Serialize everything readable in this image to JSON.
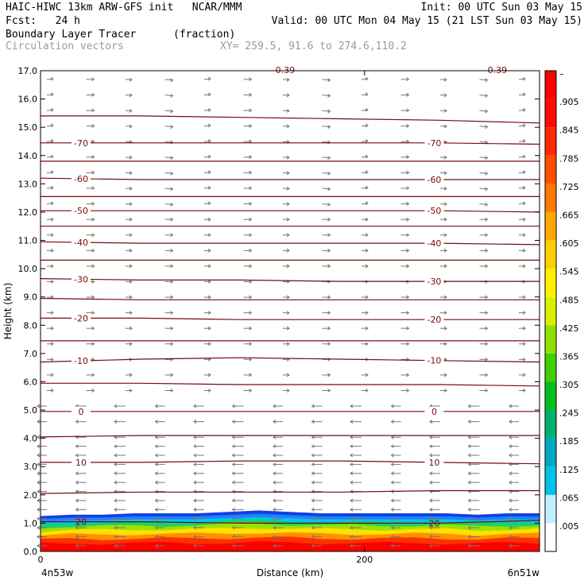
{
  "header": {
    "line1_left": "HAIC-HIWC 13km ARW-GFS init   NCAR/MMM",
    "line1_right": "Init: 00 UTC Sun 03 May 15",
    "line2_left": "Fcst:   24 h",
    "line2_right": "Valid: 00 UTC Mon 04 May 15 (21 LST Sun 03 May 15)",
    "field": "Boundary Layer Tracer",
    "field_units": "(fraction)",
    "vectors": "Circulation vectors",
    "xy": "XY= 259.5, 91.6 to 274.6,110.2"
  },
  "chart_data": {
    "type": "heatmap",
    "xlabel": "Distance (km)",
    "ylabel": "Height (km)",
    "xlim": [
      0,
      308
    ],
    "ylim": [
      0,
      17
    ],
    "x_ticks": [
      0,
      200
    ],
    "y_ticks": [
      "0.0",
      "1.0",
      "2.0",
      "3.0",
      "4.0",
      "5.0",
      "6.0",
      "7.0",
      "8.0",
      "9.0",
      "10.0",
      "11.0",
      "12.0",
      "13.0",
      "14.0",
      "15.0",
      "16.0",
      "17.0"
    ],
    "x_end_labels": {
      "left": "4n53w",
      "right": "6n51w"
    },
    "colorbar": {
      "labels": [
        "–",
        ".905",
        ".845",
        ".785",
        ".725",
        ".665",
        ".605",
        ".545",
        ".485",
        ".425",
        ".365",
        ".305",
        ".245",
        ".185",
        ".125",
        ".065",
        ".005"
      ],
      "colors": [
        "#ffffff",
        "#c0f0ff",
        "#00c0e8",
        "#00a8c0",
        "#00b070",
        "#00c020",
        "#40d000",
        "#90e000",
        "#d8f000",
        "#fff000",
        "#ffd000",
        "#ffa800",
        "#ff7800",
        "#ff5000",
        "#ff2a00",
        "#ff0c00",
        "#ff0000"
      ]
    },
    "temperature_contours_C": [
      {
        "label": "20",
        "y": [
          1.05,
          1.05,
          1.0,
          1.0,
          1.0,
          1.1
        ]
      },
      {
        "label": "",
        "y": [
          2.05,
          2.1,
          2.1,
          2.1,
          2.15,
          2.15
        ]
      },
      {
        "label": "10",
        "y": [
          3.15,
          3.15,
          3.2,
          3.2,
          3.15,
          3.1
        ]
      },
      {
        "label": "",
        "y": [
          4.05,
          4.1,
          4.1,
          4.1,
          4.1,
          4.1
        ]
      },
      {
        "label": "0",
        "y": [
          4.95,
          4.95,
          4.95,
          4.95,
          4.95,
          4.95
        ]
      },
      {
        "label": "",
        "y": [
          5.95,
          5.95,
          5.9,
          5.9,
          5.9,
          5.85
        ]
      },
      {
        "label": "-10",
        "y": [
          6.7,
          6.8,
          6.85,
          6.8,
          6.75,
          6.7
        ]
      },
      {
        "label": "",
        "y": [
          7.45,
          7.45,
          7.45,
          7.45,
          7.45,
          7.45
        ]
      },
      {
        "label": "-20",
        "y": [
          8.25,
          8.25,
          8.2,
          8.2,
          8.2,
          8.2
        ]
      },
      {
        "label": "",
        "y": [
          8.95,
          8.9,
          8.9,
          8.9,
          8.9,
          8.9
        ]
      },
      {
        "label": "-30",
        "y": [
          9.65,
          9.6,
          9.6,
          9.55,
          9.55,
          9.55
        ]
      },
      {
        "label": "",
        "y": [
          10.3,
          10.3,
          10.3,
          10.3,
          10.3,
          10.3
        ]
      },
      {
        "label": "-40",
        "y": [
          10.95,
          10.9,
          10.9,
          10.9,
          10.9,
          10.85
        ]
      },
      {
        "label": "",
        "y": [
          11.5,
          11.5,
          11.5,
          11.5,
          11.5,
          11.5
        ]
      },
      {
        "label": "-50",
        "y": [
          12.05,
          12.05,
          12.05,
          12.05,
          12.05,
          12.0
        ]
      },
      {
        "label": "",
        "y": [
          12.55,
          12.55,
          12.55,
          12.55,
          12.55,
          12.55
        ]
      },
      {
        "label": "-60",
        "y": [
          13.2,
          13.15,
          13.15,
          13.15,
          13.15,
          13.15
        ]
      },
      {
        "label": "",
        "y": [
          13.8,
          13.8,
          13.8,
          13.8,
          13.8,
          13.8
        ]
      },
      {
        "label": "-70",
        "y": [
          14.45,
          14.45,
          14.45,
          14.45,
          14.45,
          14.4
        ]
      },
      {
        "label": "",
        "y": [
          15.4,
          15.4,
          15.35,
          15.3,
          15.25,
          15.15
        ]
      }
    ],
    "contour_x_km": [
      0,
      62,
      123,
      185,
      246,
      308
    ],
    "top_labels": [
      "-0.39",
      "-0.39"
    ],
    "tracer_top_km": [
      1.25,
      1.3,
      1.3,
      1.35,
      1.35,
      1.35,
      1.4,
      1.45,
      1.4,
      1.35,
      1.35,
      1.35,
      1.35,
      1.35,
      1.3,
      1.35,
      1.35
    ]
  }
}
